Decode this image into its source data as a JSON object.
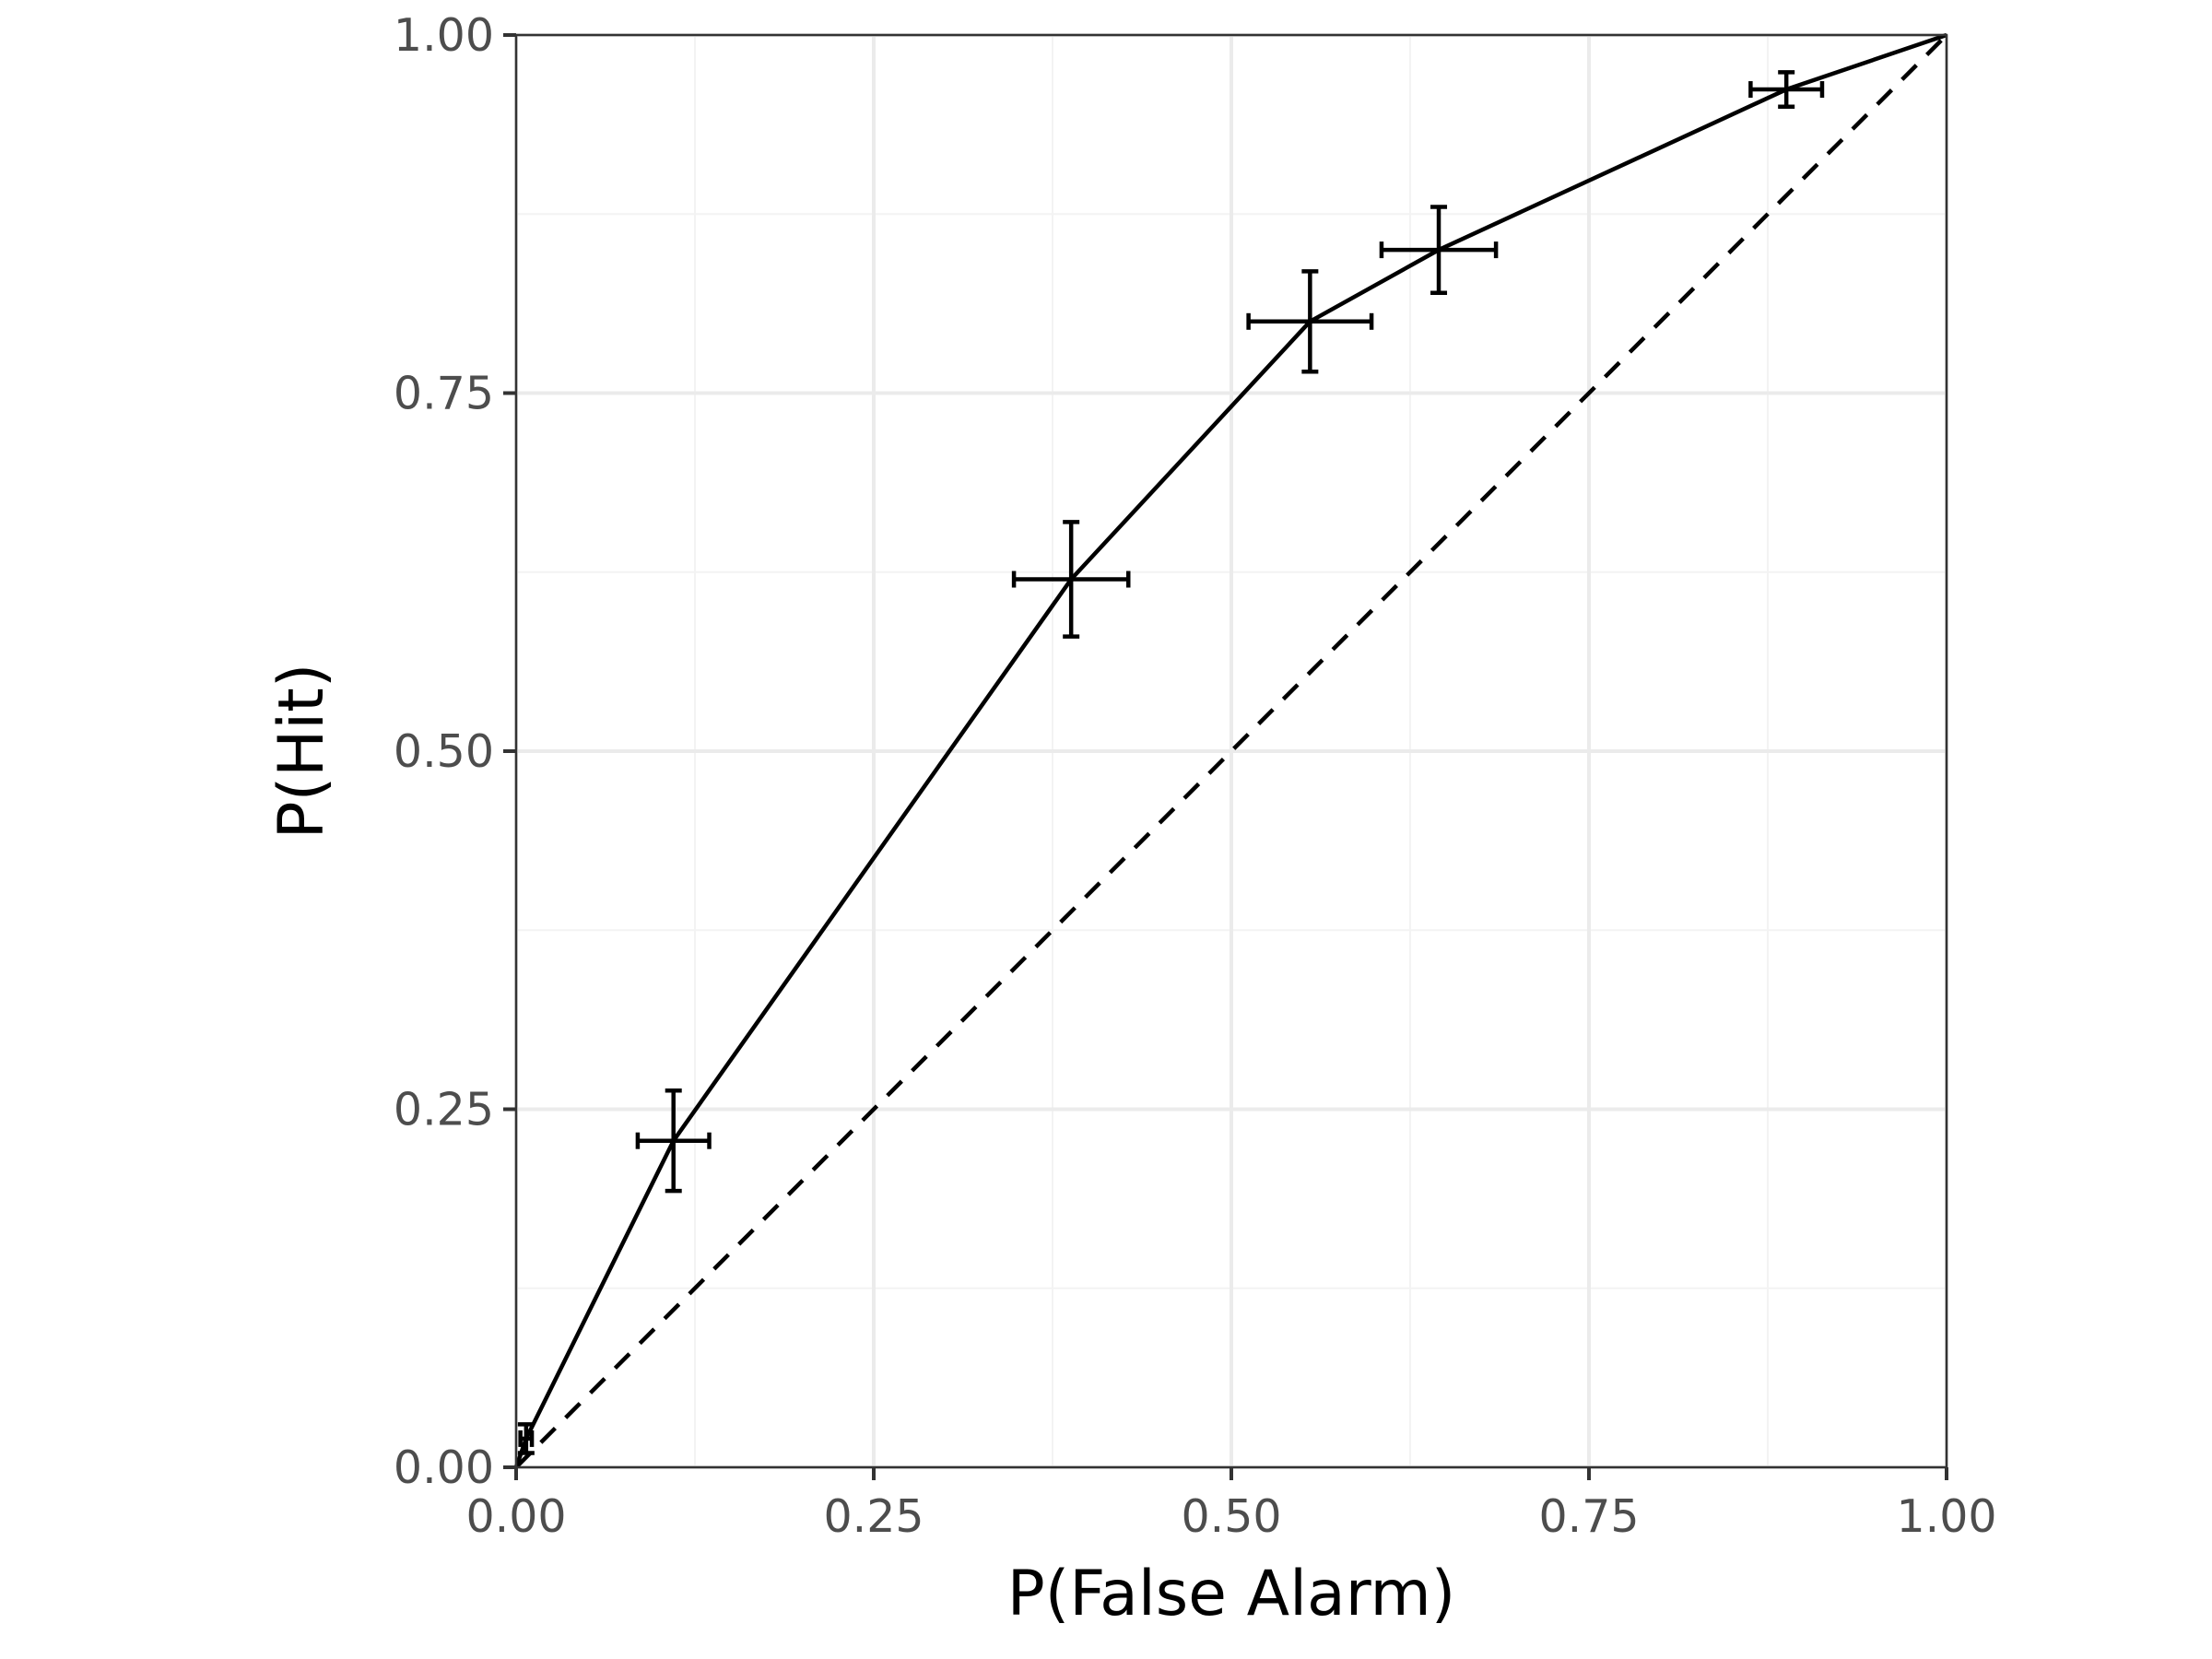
{
  "chart_data": {
    "type": "line",
    "title": "",
    "xlabel": "P(False Alarm)",
    "ylabel": "P(Hit)",
    "xlim": [
      0,
      1
    ],
    "ylim": [
      0,
      1
    ],
    "x_ticks": [
      "0.00",
      "0.25",
      "0.50",
      "0.75",
      "1.00"
    ],
    "y_ticks": [
      "0.00",
      "0.25",
      "0.50",
      "0.75",
      "1.00"
    ],
    "grid": true,
    "legend": "none",
    "series": [
      {
        "style": "solid",
        "points": [
          {
            "x": 0.0,
            "y": 0.0
          },
          {
            "x": 0.007,
            "y": 0.02,
            "xerr": 0.004,
            "yerr": 0.01
          },
          {
            "x": 0.11,
            "y": 0.228,
            "xerr": 0.025,
            "yerr": 0.035
          },
          {
            "x": 0.388,
            "y": 0.62,
            "xerr": 0.04,
            "yerr": 0.04
          },
          {
            "x": 0.555,
            "y": 0.8,
            "xerr": 0.043,
            "yerr": 0.035
          },
          {
            "x": 0.645,
            "y": 0.85,
            "xerr": 0.04,
            "yerr": 0.03
          },
          {
            "x": 0.888,
            "y": 0.962,
            "xerr": 0.025,
            "yerr": 0.012
          },
          {
            "x": 1.0,
            "y": 1.0
          }
        ]
      },
      {
        "style": "dashed",
        "points": [
          {
            "x": 0.0,
            "y": 0.0
          },
          {
            "x": 1.0,
            "y": 1.0
          }
        ]
      }
    ],
    "colors": {
      "line": "#000000",
      "grid_major": "#ebebeb",
      "grid_minor": "#f3f3f3",
      "panel_border": "#333333",
      "tick_text": "#4d4d4d",
      "background": "#ffffff"
    }
  }
}
